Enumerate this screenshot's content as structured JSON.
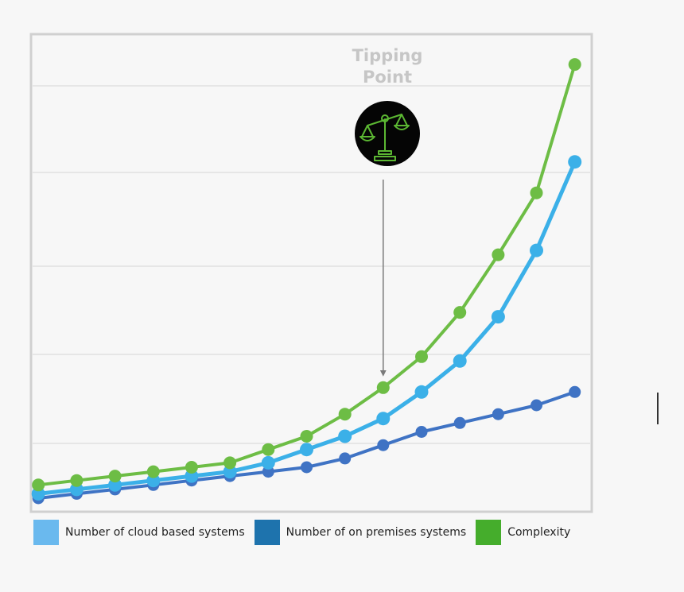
{
  "chart_data": {
    "type": "line",
    "title": "",
    "xlabel": "",
    "ylabel": "",
    "x": [
      1,
      2,
      3,
      4,
      5,
      6,
      7,
      8,
      9,
      10,
      11,
      12,
      13,
      14,
      15
    ],
    "xlim": [
      0.85,
      15.4
    ],
    "ylim": [
      0,
      100
    ],
    "grid": true,
    "legend_placement": "bottom",
    "series": [
      {
        "name": "Number of cloud based systems",
        "color": "#3bb0e8",
        "legend_color": "#6ab9ee",
        "values": [
          1,
          2,
          3,
          4,
          5,
          6,
          8,
          11,
          14,
          18,
          24,
          31,
          41,
          56,
          76
        ]
      },
      {
        "name": "Number of on premises systems",
        "color": "#3f73c4",
        "legend_color": "#1e73ad",
        "values": [
          0,
          1,
          2,
          3,
          4,
          5,
          6,
          7,
          9,
          12,
          15,
          17,
          19,
          21,
          24
        ]
      },
      {
        "name": "Complexity",
        "color": "#6dbd45",
        "legend_color": "#45ad2c",
        "values": [
          3,
          4,
          5,
          6,
          7,
          8,
          11,
          14,
          19,
          25,
          32,
          42,
          55,
          69,
          98
        ]
      }
    ],
    "annotation": {
      "lines": [
        "Tipping",
        "Point"
      ],
      "icon": "scales-of-balance-icon",
      "points_to_x": 10
    }
  }
}
